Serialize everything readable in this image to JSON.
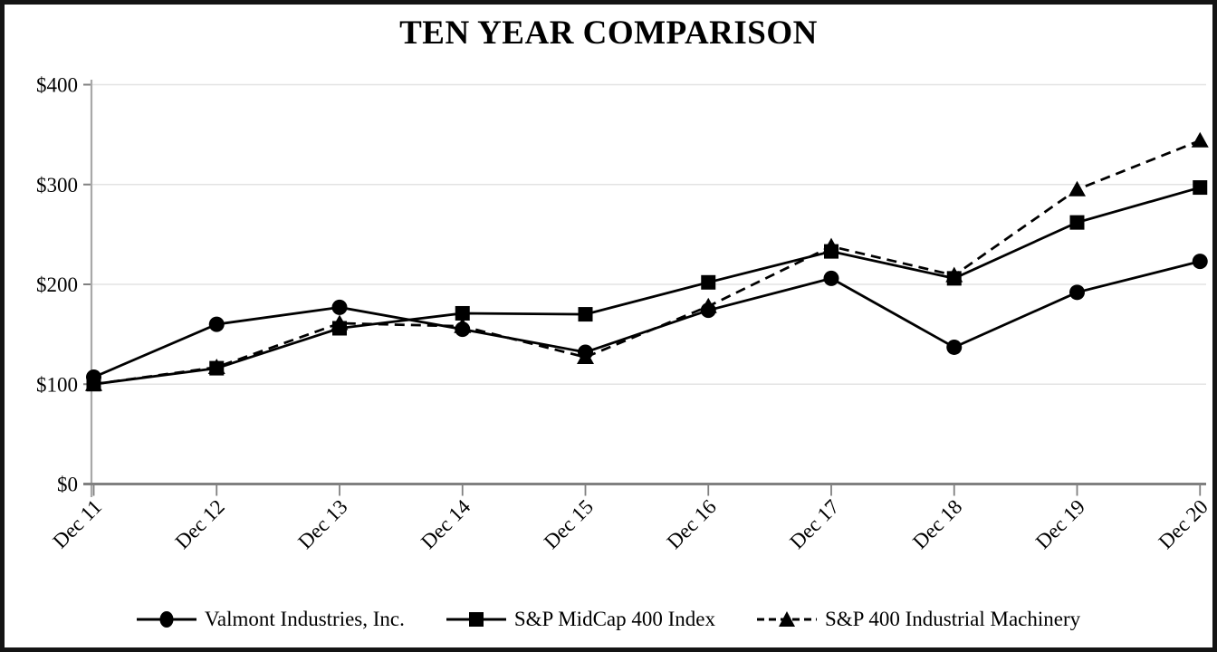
{
  "title": "TEN YEAR COMPARISON",
  "chart_data": {
    "type": "line",
    "title": "TEN YEAR COMPARISON",
    "categories": [
      "Dec 11",
      "Dec 12",
      "Dec 13",
      "Dec 14",
      "Dec 15",
      "Dec 16",
      "Dec 17",
      "Dec 18",
      "Dec 19",
      "Dec 20"
    ],
    "series": [
      {
        "name": "Valmont Industries, Inc.",
        "marker": "circle",
        "line_style": "solid",
        "values": [
          107,
          160,
          177,
          155,
          132,
          174,
          206,
          137,
          192,
          223
        ]
      },
      {
        "name": "S&P MidCap 400 Index",
        "marker": "square",
        "line_style": "solid",
        "values": [
          100,
          116,
          156,
          171,
          170,
          202,
          233,
          206,
          262,
          297
        ]
      },
      {
        "name": "S&P 400 Industrial Machinery",
        "marker": "triangle",
        "line_style": "dashed",
        "values": [
          100,
          117,
          161,
          158,
          127,
          178,
          238,
          209,
          295,
          344
        ]
      }
    ],
    "ylim": [
      0,
      400
    ],
    "ytick_step": 100,
    "ytick_labels": [
      "$0",
      "$100",
      "$200",
      "$300",
      "$400"
    ],
    "xlabel": "",
    "ylabel": "",
    "grid": "horizontal",
    "legend_position": "bottom",
    "colors": {
      "series": "#000000",
      "gridline": "#e3e3e3",
      "axis": "#808080",
      "y_axis": "#a8a8a8",
      "text": "#000000",
      "background": "#ffffff",
      "border": "#141414"
    }
  }
}
